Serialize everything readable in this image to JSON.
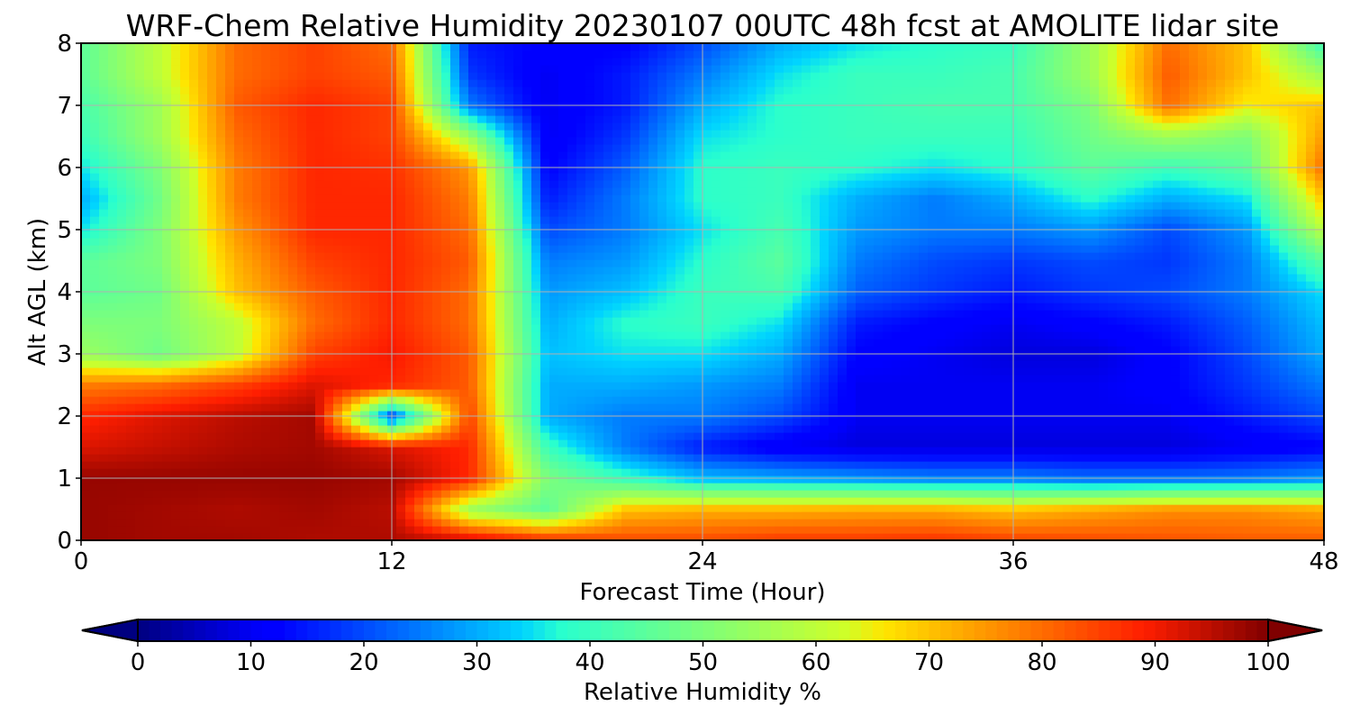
{
  "chart_data": {
    "type": "heatmap",
    "title": "WRF-Chem Relative Humidity 20230107 00UTC 48h fcst at AMOLITE lidar site",
    "xlabel": "Forecast Time (Hour)",
    "ylabel": "Alt AGL (km)",
    "xlim": [
      0,
      48
    ],
    "ylim": [
      0,
      8
    ],
    "xticks": [
      0,
      12,
      24,
      36,
      48
    ],
    "xtick_labels": [
      "0",
      "12",
      "24",
      "36",
      "48"
    ],
    "yticks": [
      0,
      1,
      2,
      3,
      4,
      5,
      6,
      7,
      8
    ],
    "ytick_labels": [
      "0",
      "1",
      "2",
      "3",
      "4",
      "5",
      "6",
      "7",
      "8"
    ],
    "grid": true,
    "colormap": "jet",
    "colorbar": {
      "label": "Relative Humidity %",
      "min": 0,
      "max": 100,
      "ticks": [
        0,
        10,
        20,
        30,
        40,
        50,
        60,
        70,
        80,
        90,
        100
      ],
      "tick_labels": [
        "0",
        "10",
        "20",
        "30",
        "40",
        "50",
        "60",
        "70",
        "80",
        "90",
        "100"
      ],
      "orientation": "horizontal",
      "extend": "both",
      "placement": "bottom"
    },
    "x": [
      0,
      3,
      6,
      9,
      12,
      15,
      18,
      21,
      24,
      27,
      30,
      33,
      36,
      39,
      42,
      45,
      48
    ],
    "y": [
      0,
      0.5,
      1,
      1.5,
      2,
      2.5,
      3,
      3.5,
      4,
      4.5,
      5,
      5.5,
      6,
      6.5,
      7,
      7.5,
      8
    ],
    "z": [
      [
        98,
        97,
        97,
        96,
        96,
        94,
        88,
        84,
        84,
        86,
        86,
        87,
        85,
        84,
        83,
        82,
        82
      ],
      [
        98,
        97,
        96,
        97,
        95,
        55,
        45,
        70,
        72,
        72,
        73,
        73,
        70,
        73,
        76,
        76,
        73
      ],
      [
        98,
        98,
        98,
        98,
        97,
        88,
        50,
        40,
        32,
        30,
        28,
        26,
        26,
        24,
        24,
        25,
        28
      ],
      [
        92,
        94,
        96,
        97,
        92,
        88,
        40,
        25,
        15,
        10,
        8,
        8,
        8,
        8,
        8,
        10,
        12
      ],
      [
        88,
        92,
        95,
        97,
        20,
        85,
        30,
        25,
        25,
        20,
        10,
        10,
        10,
        10,
        10,
        15,
        20
      ],
      [
        78,
        80,
        85,
        92,
        88,
        82,
        30,
        30,
        28,
        25,
        10,
        10,
        10,
        10,
        12,
        18,
        25
      ],
      [
        55,
        48,
        60,
        85,
        90,
        82,
        32,
        35,
        35,
        30,
        12,
        10,
        8,
        8,
        12,
        20,
        30
      ],
      [
        50,
        50,
        60,
        80,
        88,
        80,
        30,
        38,
        40,
        35,
        15,
        12,
        10,
        12,
        15,
        22,
        32
      ],
      [
        45,
        48,
        70,
        82,
        88,
        80,
        28,
        32,
        40,
        42,
        22,
        18,
        15,
        18,
        20,
        25,
        35
      ],
      [
        45,
        50,
        72,
        85,
        88,
        82,
        25,
        28,
        38,
        45,
        25,
        20,
        18,
        20,
        18,
        25,
        45
      ],
      [
        35,
        50,
        75,
        88,
        88,
        80,
        20,
        25,
        35,
        42,
        28,
        25,
        25,
        28,
        20,
        28,
        60
      ],
      [
        30,
        48,
        78,
        88,
        88,
        78,
        15,
        25,
        38,
        40,
        30,
        25,
        30,
        38,
        30,
        35,
        70
      ],
      [
        35,
        50,
        78,
        88,
        87,
        75,
        12,
        22,
        38,
        40,
        38,
        35,
        38,
        45,
        40,
        45,
        80
      ],
      [
        40,
        55,
        80,
        88,
        85,
        55,
        10,
        18,
        35,
        38,
        40,
        40,
        40,
        48,
        55,
        50,
        75
      ],
      [
        42,
        55,
        82,
        88,
        85,
        25,
        10,
        15,
        30,
        38,
        40,
        42,
        42,
        50,
        80,
        65,
        70
      ],
      [
        45,
        60,
        80,
        85,
        82,
        18,
        10,
        15,
        25,
        35,
        40,
        40,
        42,
        55,
        82,
        70,
        55
      ],
      [
        45,
        60,
        80,
        85,
        80,
        15,
        12,
        12,
        20,
        30,
        35,
        38,
        40,
        55,
        80,
        70,
        40
      ]
    ]
  }
}
